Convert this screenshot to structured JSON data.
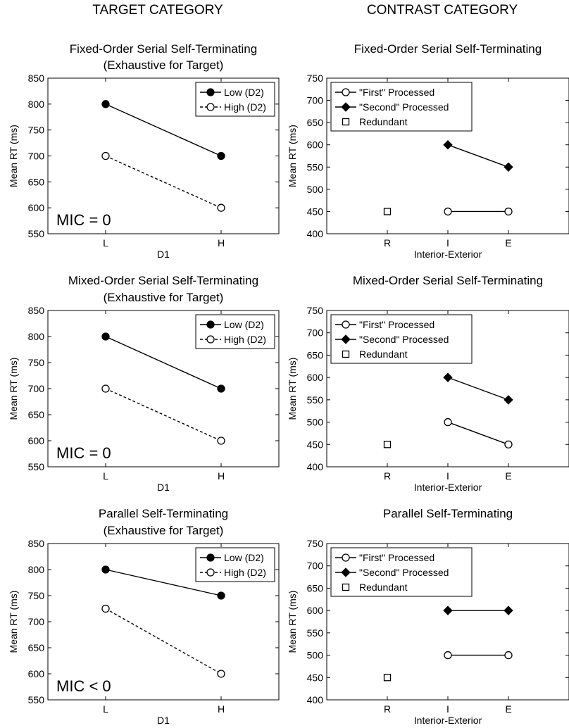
{
  "column_headers": {
    "left": "TARGET CATEGORY",
    "right": "CONTRAST CATEGORY"
  },
  "chart_data": [
    {
      "type": "line",
      "column": "left",
      "row": 0,
      "title": "Fixed-Order Serial Self-Terminating",
      "subtitle": "(Exhaustive for Target)",
      "xlabel": "D1",
      "ylabel": "Mean RT (ms)",
      "categories": [
        "L",
        "H"
      ],
      "ylim": [
        550,
        850
      ],
      "yticks": [
        550,
        600,
        650,
        700,
        750,
        800,
        850
      ],
      "legend_position": "top-right",
      "annotation": "MIC = 0",
      "series": [
        {
          "name": "Low (D2)",
          "marker": "filled-circle",
          "line": "solid",
          "points": [
            {
              "x": "L",
              "y": 800
            },
            {
              "x": "H",
              "y": 700
            }
          ]
        },
        {
          "name": "High (D2)",
          "marker": "open-circle",
          "line": "dashed",
          "points": [
            {
              "x": "L",
              "y": 700
            },
            {
              "x": "H",
              "y": 600
            }
          ]
        }
      ]
    },
    {
      "type": "line",
      "column": "right",
      "row": 0,
      "title": "Fixed-Order Serial Self-Terminating",
      "subtitle": "",
      "xlabel": "Interior-Exterior",
      "ylabel": "Mean RT (ms)",
      "categories": [
        "R",
        "I",
        "E"
      ],
      "ylim": [
        400,
        750
      ],
      "yticks": [
        400,
        450,
        500,
        550,
        600,
        650,
        700,
        750
      ],
      "legend_position": "top-left",
      "annotation": "",
      "series": [
        {
          "name": "\"First\" Processed",
          "marker": "open-circle",
          "line": "solid",
          "points": [
            {
              "x": "I",
              "y": 450
            },
            {
              "x": "E",
              "y": 450
            }
          ]
        },
        {
          "name": "\"Second\" Processed",
          "marker": "filled-diamond",
          "line": "solid",
          "points": [
            {
              "x": "I",
              "y": 600
            },
            {
              "x": "E",
              "y": 550
            }
          ]
        },
        {
          "name": "Redundant",
          "marker": "open-square",
          "line": "none",
          "points": [
            {
              "x": "R",
              "y": 450
            }
          ]
        }
      ]
    },
    {
      "type": "line",
      "column": "left",
      "row": 1,
      "title": "Mixed-Order Serial Self-Terminating",
      "subtitle": "(Exhaustive for Target)",
      "xlabel": "D1",
      "ylabel": "Mean RT (ms)",
      "categories": [
        "L",
        "H"
      ],
      "ylim": [
        550,
        850
      ],
      "yticks": [
        550,
        600,
        650,
        700,
        750,
        800,
        850
      ],
      "legend_position": "top-right",
      "annotation": "MIC = 0",
      "series": [
        {
          "name": "Low (D2)",
          "marker": "filled-circle",
          "line": "solid",
          "points": [
            {
              "x": "L",
              "y": 800
            },
            {
              "x": "H",
              "y": 700
            }
          ]
        },
        {
          "name": "High (D2)",
          "marker": "open-circle",
          "line": "dashed",
          "points": [
            {
              "x": "L",
              "y": 700
            },
            {
              "x": "H",
              "y": 600
            }
          ]
        }
      ]
    },
    {
      "type": "line",
      "column": "right",
      "row": 1,
      "title": "Mixed-Order Serial Self-Terminating",
      "subtitle": "",
      "xlabel": "Interior-Exterior",
      "ylabel": "Mean RT (ms)",
      "categories": [
        "R",
        "I",
        "E"
      ],
      "ylim": [
        400,
        750
      ],
      "yticks": [
        400,
        450,
        500,
        550,
        600,
        650,
        700,
        750
      ],
      "legend_position": "top-left",
      "annotation": "",
      "series": [
        {
          "name": "\"First\" Processed",
          "marker": "open-circle",
          "line": "solid",
          "points": [
            {
              "x": "I",
              "y": 500
            },
            {
              "x": "E",
              "y": 450
            }
          ]
        },
        {
          "name": "\"Second\" Processed",
          "marker": "filled-diamond",
          "line": "solid",
          "points": [
            {
              "x": "I",
              "y": 600
            },
            {
              "x": "E",
              "y": 550
            }
          ]
        },
        {
          "name": "Redundant",
          "marker": "open-square",
          "line": "none",
          "points": [
            {
              "x": "R",
              "y": 450
            }
          ]
        }
      ]
    },
    {
      "type": "line",
      "column": "left",
      "row": 2,
      "title": "Parallel Self-Terminating",
      "subtitle": "(Exhaustive for Target)",
      "xlabel": "D1",
      "ylabel": "Mean RT (ms)",
      "categories": [
        "L",
        "H"
      ],
      "ylim": [
        550,
        850
      ],
      "yticks": [
        550,
        600,
        650,
        700,
        750,
        800,
        850
      ],
      "legend_position": "top-right",
      "annotation": "MIC < 0",
      "series": [
        {
          "name": "Low (D2)",
          "marker": "filled-circle",
          "line": "solid",
          "points": [
            {
              "x": "L",
              "y": 800
            },
            {
              "x": "H",
              "y": 750
            }
          ]
        },
        {
          "name": "High (D2)",
          "marker": "open-circle",
          "line": "dashed",
          "points": [
            {
              "x": "L",
              "y": 725
            },
            {
              "x": "H",
              "y": 600
            }
          ]
        }
      ]
    },
    {
      "type": "line",
      "column": "right",
      "row": 2,
      "title": "Parallel Self-Terminating",
      "subtitle": "",
      "xlabel": "Interior-Exterior",
      "ylabel": "Mean RT (ms)",
      "categories": [
        "R",
        "I",
        "E"
      ],
      "ylim": [
        400,
        750
      ],
      "yticks": [
        400,
        450,
        500,
        550,
        600,
        650,
        700,
        750
      ],
      "legend_position": "top-left",
      "annotation": "",
      "series": [
        {
          "name": "\"First\" Processed",
          "marker": "open-circle",
          "line": "solid",
          "points": [
            {
              "x": "I",
              "y": 500
            },
            {
              "x": "E",
              "y": 500
            }
          ]
        },
        {
          "name": "\"Second\" Processed",
          "marker": "filled-diamond",
          "line": "solid",
          "points": [
            {
              "x": "I",
              "y": 600
            },
            {
              "x": "E",
              "y": 600
            }
          ]
        },
        {
          "name": "Redundant",
          "marker": "open-square",
          "line": "none",
          "points": [
            {
              "x": "R",
              "y": 450
            }
          ]
        }
      ]
    }
  ]
}
